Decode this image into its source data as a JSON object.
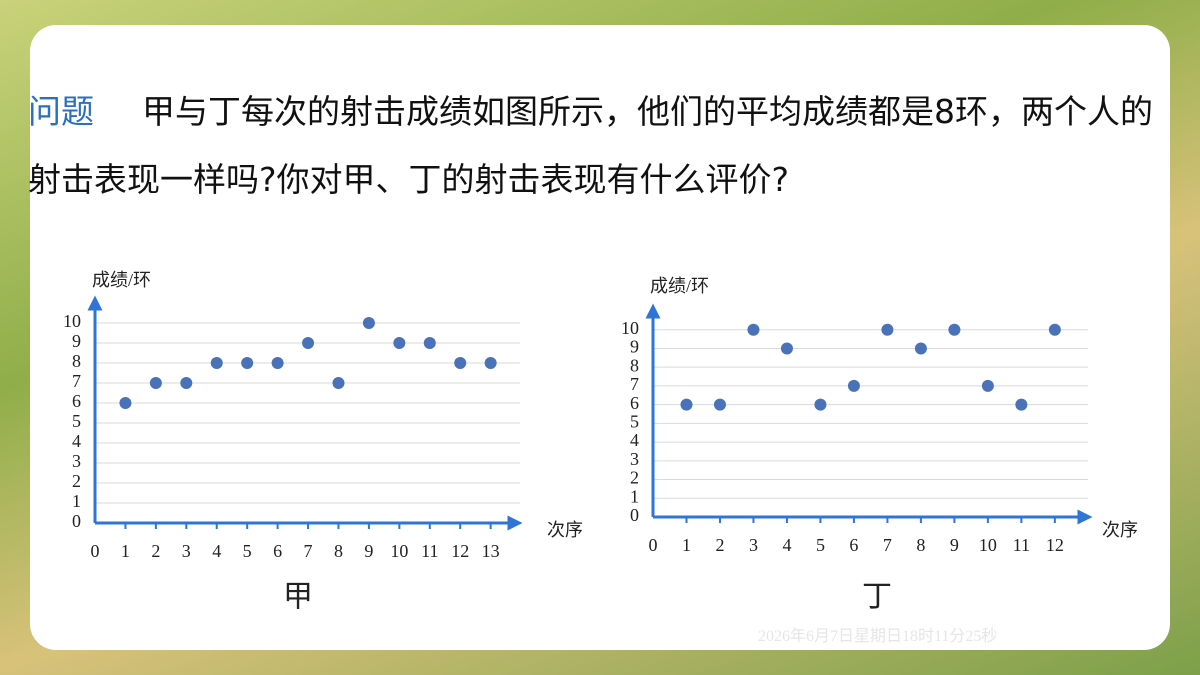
{
  "question": {
    "label": "问题",
    "text": "甲与丁每次的射击成绩如图所示，他们的平均成绩都是8环，两个人的射击表现一样吗?你对甲、丁的射击表现有什么评价?"
  },
  "chart_data": [
    {
      "type": "scatter",
      "title": "甲",
      "y_label": "成绩/环",
      "x_label": "次序",
      "color": "#4a72b8",
      "grid": true,
      "x": [
        1,
        2,
        3,
        4,
        5,
        6,
        7,
        8,
        9,
        10,
        11,
        12,
        13
      ],
      "values": [
        6,
        7,
        7,
        8,
        8,
        8,
        9,
        7,
        10,
        9,
        9,
        8,
        8
      ],
      "xlim": [
        0,
        13.8
      ],
      "ylim": [
        0,
        11
      ],
      "xticks": [
        0,
        1,
        2,
        3,
        4,
        5,
        6,
        7,
        8,
        9,
        10,
        11,
        12,
        13
      ],
      "yticks": [
        0,
        1,
        2,
        3,
        4,
        5,
        6,
        7,
        8,
        9,
        10
      ]
    },
    {
      "type": "scatter",
      "title": "丁",
      "y_label": "成绩/环",
      "x_label": "次序",
      "color": "#4a72b8",
      "grid": true,
      "x": [
        1,
        2,
        3,
        4,
        5,
        6,
        7,
        8,
        9,
        10,
        11,
        12
      ],
      "values": [
        6,
        6,
        10,
        9,
        6,
        7,
        10,
        9,
        10,
        7,
        6,
        10
      ],
      "xlim": [
        0,
        12.9
      ],
      "ylim": [
        0,
        11
      ],
      "xticks": [
        0,
        1,
        2,
        3,
        4,
        5,
        6,
        7,
        8,
        9,
        10,
        11,
        12
      ],
      "yticks": [
        0,
        1,
        2,
        3,
        4,
        5,
        6,
        7,
        8,
        9,
        10
      ]
    }
  ],
  "timestamp": "2026年6月7日星期日18时11分25秒"
}
